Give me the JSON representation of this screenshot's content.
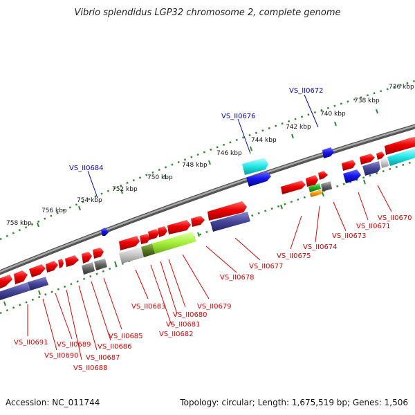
{
  "title": "Vibrio splendidus LGP32 chromosome 2, complete genome",
  "accession": "Accession: NC_011744",
  "topology": "Topology: circular; Length: 1,675,519 bp; Genes: 1,506",
  "scale_labels": [
    {
      "text": "758 kbp"
    },
    {
      "text": "756 kbp"
    },
    {
      "text": "754 kbp"
    },
    {
      "text": "752 kbp"
    },
    {
      "text": "750 kbp"
    },
    {
      "text": "748 kbp"
    },
    {
      "text": "746 kbp"
    },
    {
      "text": "744 kbp"
    },
    {
      "text": "742 kbp"
    },
    {
      "text": "740 kbp"
    },
    {
      "text": "738 kbp"
    },
    {
      "text": "736 kbp"
    }
  ],
  "upper_gene_labels": [
    "VS_II0684",
    "VS_II0676",
    "VS_II0672"
  ],
  "lower_gene_labels": [
    "VS_II0691",
    "VS_II0690",
    "VS_II0689",
    "VS_II0688",
    "VS_II0687",
    "VS_II0686",
    "VS_II0685",
    "VS_II0683",
    "VS_II0682",
    "VS_II0681",
    "VS_II0680",
    "VS_II0679",
    "VS_II0678",
    "VS_II0677",
    "VS_II0675",
    "VS_II0674",
    "VS_II0673",
    "VS_II0671",
    "VS_II0670"
  ],
  "colors": {
    "forward_gene": "#ee0000",
    "reverse_gene": "#2222dd",
    "cyan_feature": "#11dddd",
    "purple_feature": "#444499",
    "lime_feature": "#99ee33",
    "green_feature": "#22aa22",
    "orange_feature": "#ff9900",
    "gray_feature": "#666666",
    "tick_green": "#228822",
    "backbone": "#777777",
    "red_label": "#e00000",
    "blue_label": "#0000cc"
  }
}
